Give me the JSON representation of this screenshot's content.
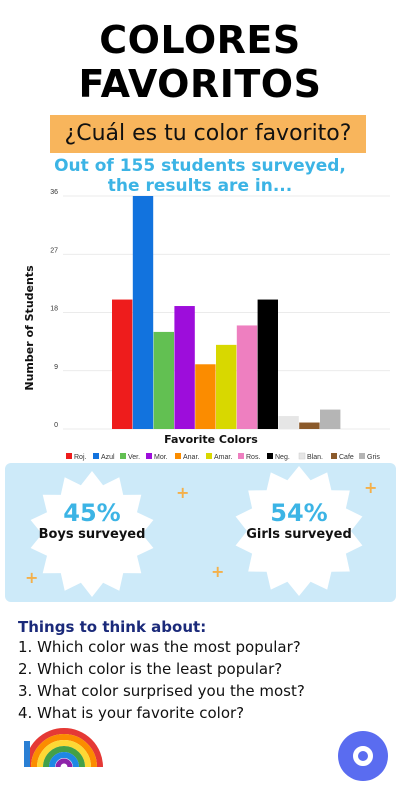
{
  "header": {
    "title_line1": "COLORES",
    "title_line2": "FAVORITOS",
    "subtitle": "¿Cuál es tu color favorito?",
    "survey_line1": "Out of 155 students surveyed,",
    "survey_line2": "the results are in..."
  },
  "colors": {
    "subtitle_bg": "#f8b55c",
    "survey_text": "#3cb4e5",
    "panel_bg": "#cdeaf9",
    "think_title": "#1b2a7a",
    "fab": "#5a6cf0"
  },
  "chart_data": {
    "type": "bar",
    "title": "",
    "xlabel": "Favorite Colors",
    "ylabel": "Number of Students",
    "ylim": [
      0,
      36
    ],
    "yticks": [
      0,
      9,
      18,
      27,
      36
    ],
    "grid": true,
    "legend": "bottom",
    "categories": [
      "Roj.",
      "Azul",
      "Ver.",
      "Mor.",
      "Anar.",
      "Amar.",
      "Ros.",
      "Neg.",
      "Blan.",
      "Cafe",
      "Gris"
    ],
    "values": [
      20,
      36,
      15,
      19,
      10,
      13,
      16,
      20,
      2,
      1,
      3
    ],
    "bar_colors": [
      "#ee1c1c",
      "#1273de",
      "#62c052",
      "#9d0ddb",
      "#fb8c00",
      "#d8d800",
      "#ee7fc0",
      "#000000",
      "#e6e6e6",
      "#8b5a2b",
      "#b5b5b5"
    ]
  },
  "stats": {
    "boys_pct": "45%",
    "boys_label": "Boys surveyed",
    "girls_pct": "54%",
    "girls_label": "Girls surveyed"
  },
  "think": {
    "title": "Things to think about:",
    "questions": [
      "1. Which color was the most popular?",
      "2.  Which color is the least popular?",
      "3. What color surprised you the most?",
      "4. What is your favorite color?"
    ]
  },
  "icons": {
    "decoration": "rainbow-icon",
    "action": "circle-action-icon"
  }
}
